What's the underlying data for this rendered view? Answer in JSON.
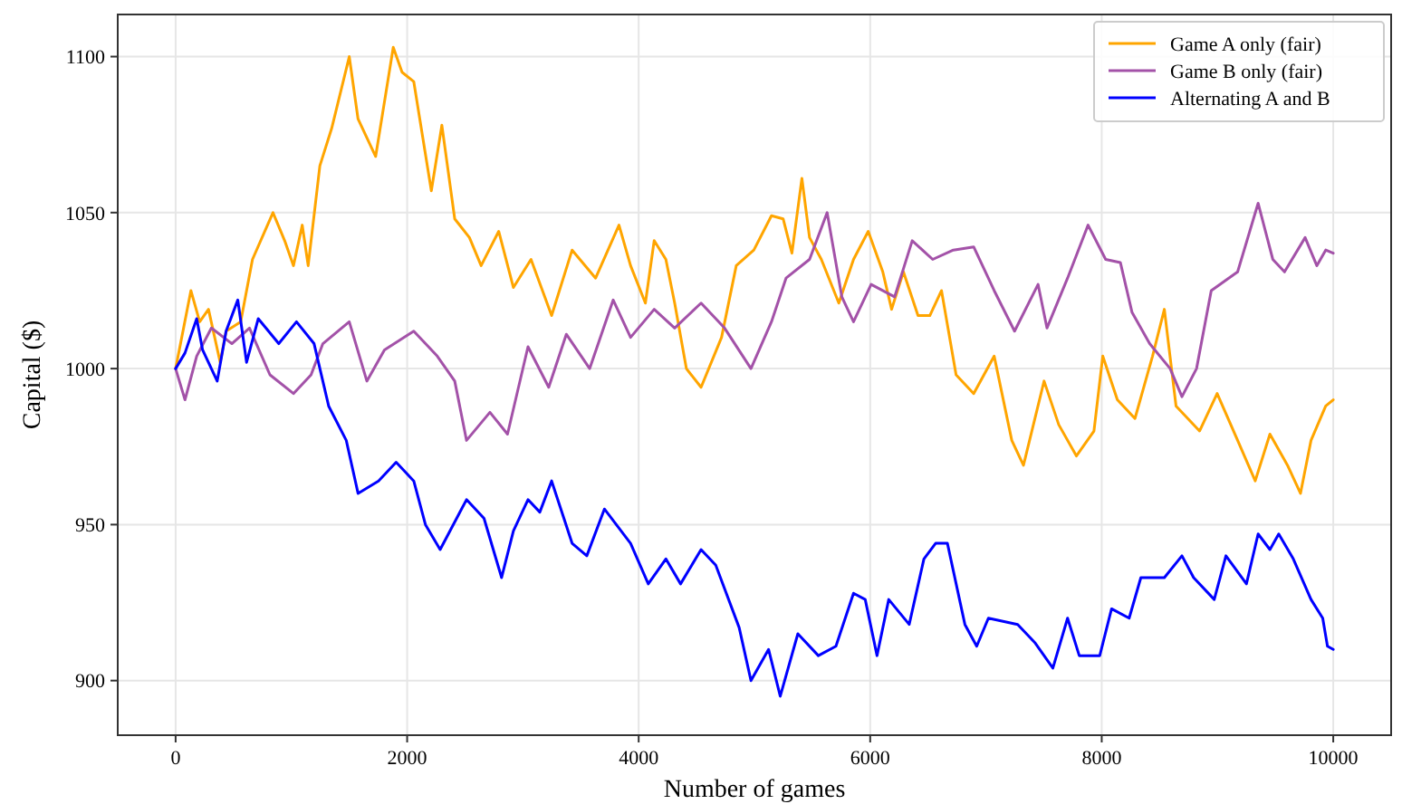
{
  "chart_data": {
    "type": "line",
    "xlabel": "Number of games",
    "ylabel": "Capital ($)",
    "xlim": [
      -500,
      10500
    ],
    "ylim": [
      882.5,
      1113.5
    ],
    "xticks": [
      0,
      2000,
      4000,
      6000,
      8000,
      10000
    ],
    "yticks": [
      900,
      950,
      1000,
      1050,
      1100
    ],
    "grid": true,
    "legend": "top right",
    "line_style": "solid",
    "marker": "none",
    "series": [
      {
        "name": "Game A only (fair)",
        "color": "#ffa500",
        "x": [
          0,
          132,
          208,
          284,
          385,
          436,
          562,
          664,
          841,
          942,
          1018,
          1094,
          1145,
          1246,
          1348,
          1500,
          1576,
          1728,
          1880,
          1956,
          2057,
          2209,
          2300,
          2411,
          2538,
          2639,
          2791,
          2918,
          3070,
          3248,
          3425,
          3628,
          3830,
          3930,
          4058,
          4134,
          4235,
          4311,
          4412,
          4539,
          4716,
          4843,
          4995,
          5147,
          5248,
          5324,
          5410,
          5476,
          5578,
          5729,
          5856,
          5983,
          6109,
          6185,
          6287,
          6413,
          6515,
          6616,
          6742,
          6894,
          7071,
          7223,
          7324,
          7502,
          7629,
          7781,
          7933,
          8009,
          8135,
          8287,
          8439,
          8541,
          8642,
          8845,
          8997,
          9174,
          9326,
          9453,
          9605,
          9717,
          9808,
          9935,
          10000
        ],
        "values": [
          1000,
          1025,
          1015,
          1019,
          1002,
          1012,
          1015,
          1035,
          1050,
          1041,
          1033,
          1046,
          1033,
          1065,
          1077,
          1100,
          1080,
          1068,
          1103,
          1095,
          1092,
          1057,
          1078,
          1048,
          1042,
          1033,
          1044,
          1026,
          1035,
          1017,
          1038,
          1029,
          1046,
          1033,
          1021,
          1041,
          1035,
          1021,
          1000,
          994,
          1010,
          1033,
          1038,
          1049,
          1048,
          1037,
          1061,
          1042,
          1035,
          1021,
          1035,
          1044,
          1031,
          1019,
          1031,
          1017,
          1017,
          1025,
          998,
          992,
          1004,
          977,
          969,
          996,
          982,
          972,
          980,
          1004,
          990,
          984,
          1004,
          1019,
          988,
          980,
          992,
          977,
          964,
          979,
          969,
          960,
          977,
          988,
          990
        ]
      },
      {
        "name": "Game B only (fair)",
        "color": "#a352a8",
        "x": [
          0,
          81,
          182,
          309,
          486,
          638,
          815,
          1018,
          1170,
          1272,
          1500,
          1652,
          1804,
          2057,
          2260,
          2411,
          2513,
          2715,
          2867,
          3044,
          3223,
          3375,
          3577,
          3780,
          3930,
          4134,
          4311,
          4539,
          4742,
          4970,
          5147,
          5273,
          5476,
          5628,
          5755,
          5856,
          6008,
          6211,
          6363,
          6540,
          6718,
          6894,
          7071,
          7247,
          7450,
          7527,
          7705,
          7882,
          8034,
          8161,
          8262,
          8414,
          8591,
          8693,
          8819,
          8946,
          9174,
          9351,
          9478,
          9579,
          9757,
          9858,
          9935,
          10000
        ],
        "values": [
          1000,
          990,
          1004,
          1013,
          1008,
          1013,
          998,
          992,
          998,
          1008,
          1015,
          996,
          1006,
          1012,
          1004,
          996,
          977,
          986,
          979,
          1007,
          994,
          1011,
          1000,
          1022,
          1010,
          1019,
          1013,
          1021,
          1013,
          1000,
          1015,
          1029,
          1035,
          1050,
          1023,
          1015,
          1027,
          1023,
          1041,
          1035,
          1038,
          1039,
          1025,
          1012,
          1027,
          1013,
          1029,
          1046,
          1035,
          1034,
          1018,
          1008,
          1000,
          991,
          1000,
          1025,
          1031,
          1053,
          1035,
          1031,
          1042,
          1033,
          1038,
          1037
        ]
      },
      {
        "name": "Alternating A and B",
        "color": "#0000ff",
        "x": [
          0,
          81,
          182,
          233,
          359,
          436,
          537,
          613,
          714,
          891,
          1044,
          1196,
          1322,
          1474,
          1576,
          1753,
          1905,
          2057,
          2158,
          2285,
          2513,
          2664,
          2816,
          2918,
          3044,
          3146,
          3248,
          3425,
          3552,
          3704,
          3930,
          4083,
          4235,
          4362,
          4539,
          4666,
          4868,
          4970,
          5122,
          5223,
          5375,
          5552,
          5704,
          5856,
          5957,
          6059,
          6160,
          6337,
          6464,
          6565,
          6667,
          6818,
          6920,
          7021,
          7274,
          7426,
          7578,
          7705,
          7806,
          7983,
          8085,
          8237,
          8338,
          8541,
          8693,
          8794,
          8972,
          9073,
          9250,
          9351,
          9453,
          9529,
          9655,
          9808,
          9909,
          9950,
          10000
        ],
        "values": [
          1000,
          1005,
          1016,
          1006,
          996,
          1012,
          1022,
          1002,
          1016,
          1008,
          1015,
          1008,
          988,
          977,
          960,
          964,
          970,
          964,
          950,
          942,
          958,
          952,
          933,
          948,
          958,
          954,
          964,
          944,
          940,
          955,
          944,
          931,
          939,
          931,
          942,
          937,
          917,
          900,
          910,
          895,
          915,
          908,
          911,
          928,
          926,
          908,
          926,
          918,
          939,
          944,
          944,
          918,
          911,
          920,
          918,
          912,
          904,
          920,
          908,
          908,
          923,
          920,
          933,
          933,
          940,
          933,
          926,
          940,
          931,
          947,
          942,
          947,
          939,
          926,
          920,
          911,
          910
        ]
      }
    ]
  }
}
